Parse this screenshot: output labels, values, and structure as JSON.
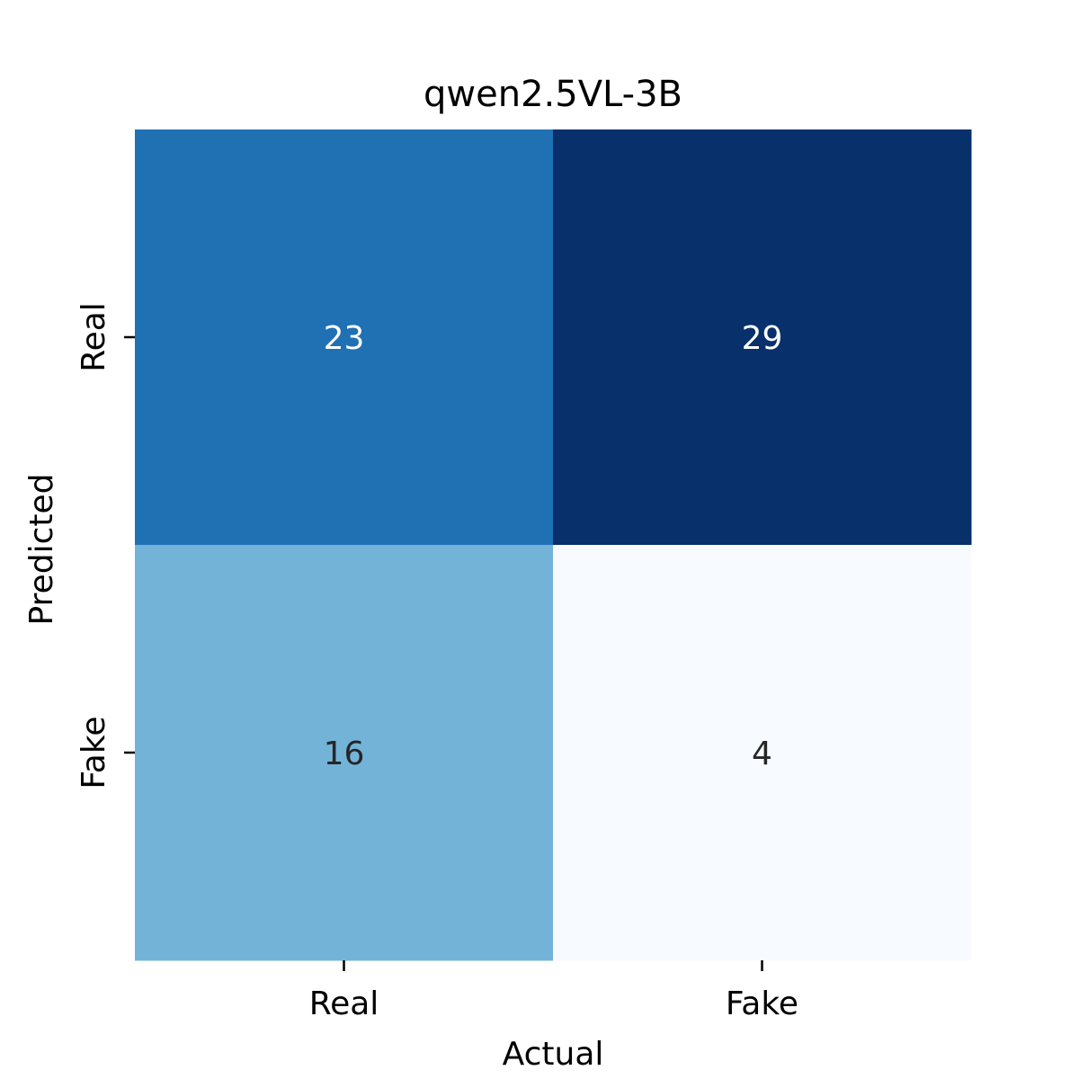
{
  "chart_data": {
    "type": "heatmap",
    "title": "qwen2.5VL-3B",
    "xlabel": "Actual",
    "ylabel": "Predicted",
    "x_categories": [
      "Real",
      "Fake"
    ],
    "y_categories": [
      "Real",
      "Fake"
    ],
    "values": [
      [
        23,
        29
      ],
      [
        16,
        4
      ]
    ],
    "colormap": "Blues",
    "colorbar": false,
    "cell_colors": [
      [
        "#2070b4",
        "#08306b"
      ],
      [
        "#74b3d8",
        "#f7fbff"
      ]
    ],
    "label_colors": [
      [
        "#ffffff",
        "#ffffff"
      ],
      [
        "#262626",
        "#262626"
      ]
    ]
  }
}
